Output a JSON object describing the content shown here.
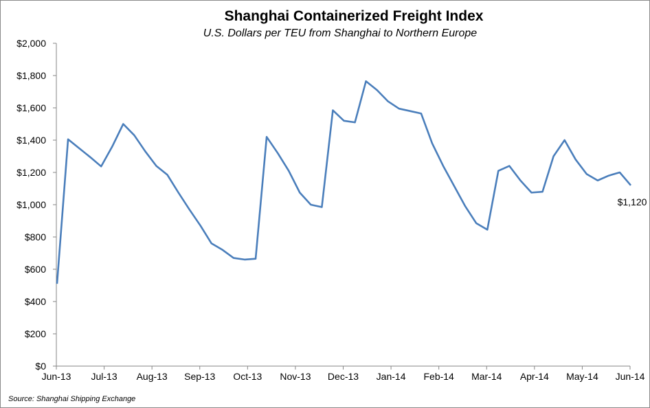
{
  "chart_data": {
    "type": "line",
    "title": "Shanghai Containerized Freight Index",
    "subtitle": "U.S. Dollars per TEU from Shanghai to Northern Europe",
    "source": "Source: Shanghai Shipping Exchange",
    "xlabel": "",
    "ylabel": "",
    "x_tick_labels": [
      "Jun-13",
      "Jul-13",
      "Aug-13",
      "Sep-13",
      "Oct-13",
      "Nov-13",
      "Dec-13",
      "Jan-14",
      "Feb-14",
      "Mar-14",
      "Apr-14",
      "May-14",
      "Jun-14"
    ],
    "y_tick_labels": [
      "$0",
      "$200",
      "$400",
      "$600",
      "$800",
      "$1,000",
      "$1,200",
      "$1,400",
      "$1,600",
      "$1,800",
      "$2,000"
    ],
    "ylim": [
      0,
      2000
    ],
    "x_frequency": "weekly",
    "grid": false,
    "line_color": "#4a7ebb",
    "end_label": "$1,120",
    "series": [
      {
        "values": [
          510,
          1405,
          1350,
          1295,
          1237,
          1360,
          1500,
          1430,
          1330,
          1240,
          1185,
          1075,
          970,
          870,
          760,
          720,
          670,
          660,
          665,
          1420,
          1320,
          1210,
          1075,
          1000,
          985,
          1585,
          1520,
          1510,
          1765,
          1710,
          1640,
          1595,
          1580,
          1565,
          1380,
          1240,
          1115,
          990,
          885,
          845,
          1210,
          1240,
          1150,
          1075,
          1080,
          1300,
          1400,
          1280,
          1190,
          1150,
          1180,
          1200,
          1120
        ]
      }
    ]
  }
}
